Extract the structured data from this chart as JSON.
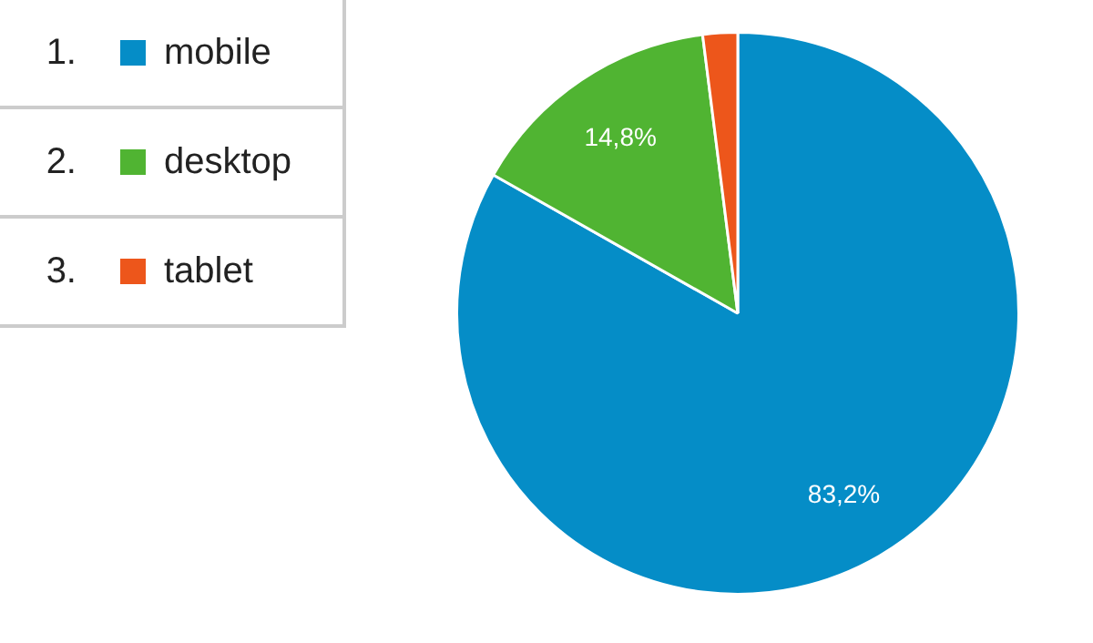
{
  "chart_data": {
    "type": "pie",
    "categories": [
      "mobile",
      "desktop",
      "tablet"
    ],
    "values": [
      83.2,
      14.8,
      2.0
    ],
    "colors": [
      "#058dc7",
      "#50b432",
      "#ed561b"
    ],
    "value_labels": [
      "83,2%",
      "14,8%",
      null
    ],
    "annotations": [
      "1.",
      "2.",
      "3."
    ],
    "legend": "left"
  }
}
